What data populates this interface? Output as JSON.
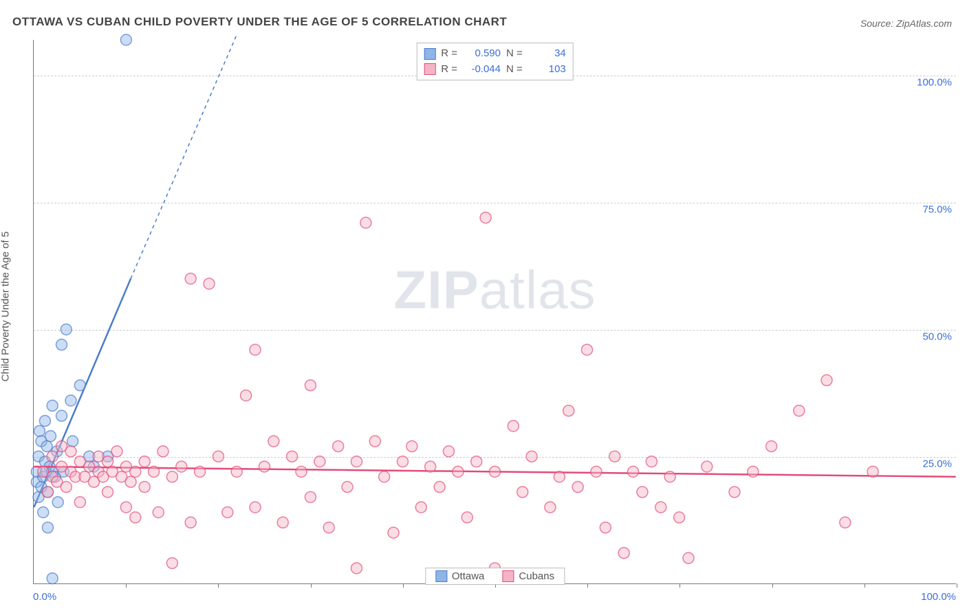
{
  "title": "OTTAWA VS CUBAN CHILD POVERTY UNDER THE AGE OF 5 CORRELATION CHART",
  "source_label": "Source:",
  "source_value": "ZipAtlas.com",
  "y_axis_label": "Child Poverty Under the Age of 5",
  "watermark_bold": "ZIP",
  "watermark_rest": "atlas",
  "x_min_label": "0.0%",
  "x_max_label": "100.0%",
  "chart": {
    "type": "scatter",
    "xlim": [
      0,
      100
    ],
    "ylim": [
      0,
      107
    ],
    "y_ticks": [
      25,
      50,
      75,
      100
    ],
    "y_tick_labels": [
      "25.0%",
      "50.0%",
      "75.0%",
      "100.0%"
    ],
    "x_ticks": [
      10,
      20,
      30,
      40,
      50,
      60,
      70,
      80,
      90,
      100
    ],
    "background_color": "#ffffff",
    "grid_color": "#cccccc",
    "axis_color": "#777777",
    "marker_radius": 8,
    "marker_opacity": 0.45,
    "marker_stroke_width": 1.5,
    "trend_line_width": 2.5
  },
  "series": [
    {
      "name": "Ottawa",
      "fill": "#8fb4e8",
      "stroke": "#4a7cc9",
      "r_label": "R =",
      "r_value": "0.590",
      "n_label": "N =",
      "n_value": "34",
      "trend": {
        "x1": 0,
        "y1": 15,
        "x2": 10.5,
        "y2": 60,
        "dashed_to_x": 22,
        "dashed_to_y": 108
      },
      "points": [
        [
          0.3,
          20
        ],
        [
          0.3,
          22
        ],
        [
          0.5,
          25
        ],
        [
          0.5,
          17
        ],
        [
          0.6,
          30
        ],
        [
          0.8,
          28
        ],
        [
          0.8,
          19
        ],
        [
          1,
          21
        ],
        [
          1,
          14
        ],
        [
          1.2,
          24
        ],
        [
          1.2,
          32
        ],
        [
          1.3,
          22
        ],
        [
          1.4,
          27
        ],
        [
          1.5,
          18
        ],
        [
          1.5,
          11
        ],
        [
          1.7,
          23
        ],
        [
          1.8,
          29
        ],
        [
          2,
          22
        ],
        [
          2,
          35
        ],
        [
          2.3,
          21
        ],
        [
          2.5,
          26
        ],
        [
          2.6,
          16
        ],
        [
          3,
          33
        ],
        [
          3,
          47
        ],
        [
          3.2,
          22
        ],
        [
          3.5,
          50
        ],
        [
          4,
          36
        ],
        [
          4.2,
          28
        ],
        [
          5,
          39
        ],
        [
          6,
          25
        ],
        [
          6.5,
          23
        ],
        [
          8,
          25
        ],
        [
          2,
          1
        ],
        [
          10,
          107
        ]
      ]
    },
    {
      "name": "Cubans",
      "fill": "#f4b4c6",
      "stroke": "#e24b7a",
      "r_label": "R =",
      "r_value": "-0.044",
      "n_label": "N =",
      "n_value": "103",
      "trend": {
        "x1": 0,
        "y1": 23,
        "x2": 100,
        "y2": 21
      },
      "points": [
        [
          1,
          22
        ],
        [
          1.5,
          18
        ],
        [
          2,
          21
        ],
        [
          2,
          25
        ],
        [
          2.5,
          20
        ],
        [
          3,
          23
        ],
        [
          3,
          27
        ],
        [
          3.5,
          19
        ],
        [
          4,
          22
        ],
        [
          4,
          26
        ],
        [
          4.5,
          21
        ],
        [
          5,
          24
        ],
        [
          5,
          16
        ],
        [
          5.5,
          21
        ],
        [
          6,
          23
        ],
        [
          6.5,
          20
        ],
        [
          7,
          25
        ],
        [
          7,
          22
        ],
        [
          7.5,
          21
        ],
        [
          8,
          24
        ],
        [
          8,
          18
        ],
        [
          8.5,
          22
        ],
        [
          9,
          26
        ],
        [
          9.5,
          21
        ],
        [
          10,
          23
        ],
        [
          10,
          15
        ],
        [
          10.5,
          20
        ],
        [
          11,
          22
        ],
        [
          11,
          13
        ],
        [
          12,
          24
        ],
        [
          12,
          19
        ],
        [
          13,
          22
        ],
        [
          13.5,
          14
        ],
        [
          14,
          26
        ],
        [
          15,
          21
        ],
        [
          15,
          4
        ],
        [
          16,
          23
        ],
        [
          17,
          12
        ],
        [
          17,
          60
        ],
        [
          18,
          22
        ],
        [
          19,
          59
        ],
        [
          20,
          25
        ],
        [
          21,
          14
        ],
        [
          22,
          22
        ],
        [
          23,
          37
        ],
        [
          24,
          15
        ],
        [
          24,
          46
        ],
        [
          25,
          23
        ],
        [
          26,
          28
        ],
        [
          27,
          12
        ],
        [
          28,
          25
        ],
        [
          29,
          22
        ],
        [
          30,
          17
        ],
        [
          30,
          39
        ],
        [
          31,
          24
        ],
        [
          32,
          11
        ],
        [
          33,
          27
        ],
        [
          34,
          19
        ],
        [
          35,
          24
        ],
        [
          35,
          3
        ],
        [
          36,
          71
        ],
        [
          37,
          28
        ],
        [
          38,
          21
        ],
        [
          39,
          10
        ],
        [
          40,
          24
        ],
        [
          41,
          27
        ],
        [
          42,
          15
        ],
        [
          43,
          23
        ],
        [
          44,
          19
        ],
        [
          45,
          26
        ],
        [
          46,
          22
        ],
        [
          47,
          13
        ],
        [
          48,
          24
        ],
        [
          49,
          72
        ],
        [
          50,
          22
        ],
        [
          50,
          3
        ],
        [
          52,
          31
        ],
        [
          53,
          18
        ],
        [
          54,
          25
        ],
        [
          56,
          15
        ],
        [
          57,
          21
        ],
        [
          58,
          34
        ],
        [
          59,
          19
        ],
        [
          60,
          46
        ],
        [
          61,
          22
        ],
        [
          62,
          11
        ],
        [
          63,
          25
        ],
        [
          64,
          6
        ],
        [
          65,
          22
        ],
        [
          66,
          18
        ],
        [
          67,
          24
        ],
        [
          68,
          15
        ],
        [
          69,
          21
        ],
        [
          70,
          13
        ],
        [
          71,
          5
        ],
        [
          73,
          23
        ],
        [
          76,
          18
        ],
        [
          78,
          22
        ],
        [
          80,
          27
        ],
        [
          83,
          34
        ],
        [
          86,
          40
        ],
        [
          88,
          12
        ],
        [
          91,
          22
        ]
      ]
    }
  ],
  "bottom_legend": [
    "Ottawa",
    "Cubans"
  ]
}
